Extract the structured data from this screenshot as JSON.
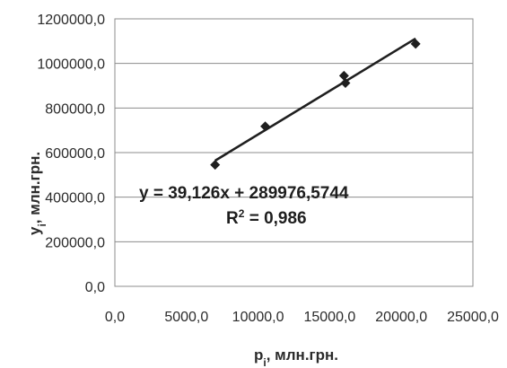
{
  "chart_data": {
    "type": "scatter",
    "title": "",
    "xlabel": {
      "main": "p",
      "sub": "i",
      "rest": ", млн.грн."
    },
    "ylabel": {
      "main": "y",
      "sub": "i",
      "rest": ", млн.грн."
    },
    "xlim": [
      0,
      25000
    ],
    "ylim": [
      0,
      1200000
    ],
    "x_ticks": [
      {
        "value": 0,
        "label": "0,0"
      },
      {
        "value": 5000,
        "label": "5000,0"
      },
      {
        "value": 10000,
        "label": "10000,0"
      },
      {
        "value": 15000,
        "label": "15000,0"
      },
      {
        "value": 20000,
        "label": "20000,0"
      },
      {
        "value": 25000,
        "label": "25000,0"
      }
    ],
    "y_ticks": [
      {
        "value": 0,
        "label": "0,0"
      },
      {
        "value": 200000,
        "label": "200000,0"
      },
      {
        "value": 400000,
        "label": "400000,0"
      },
      {
        "value": 600000,
        "label": "600000,0"
      },
      {
        "value": 800000,
        "label": "800000,0"
      },
      {
        "value": 1000000,
        "label": "1000000,0"
      },
      {
        "value": 1200000,
        "label": "1200000,0"
      }
    ],
    "grid": "horizontal",
    "legend": "none",
    "series": [
      {
        "points": [
          {
            "x": 7000,
            "y": 545000
          },
          {
            "x": 10500,
            "y": 718000
          },
          {
            "x": 16000,
            "y": 945000
          },
          {
            "x": 16100,
            "y": 912000
          },
          {
            "x": 21000,
            "y": 1088000
          }
        ]
      }
    ],
    "trendline": {
      "slope": 39.126,
      "intercept": 289976.5744,
      "x_range": [
        7000,
        21000
      ]
    },
    "annotations": {
      "equation": "y = 39,126x + 289976,5744",
      "r2_main": "R",
      "r2_sup": "2",
      "r2_rest": " = 0,986"
    },
    "colors": {
      "marker": "#1f1f1f",
      "line": "#1f1f1f",
      "grid": "#8c8c8c",
      "text": "#2b2b2b"
    }
  }
}
